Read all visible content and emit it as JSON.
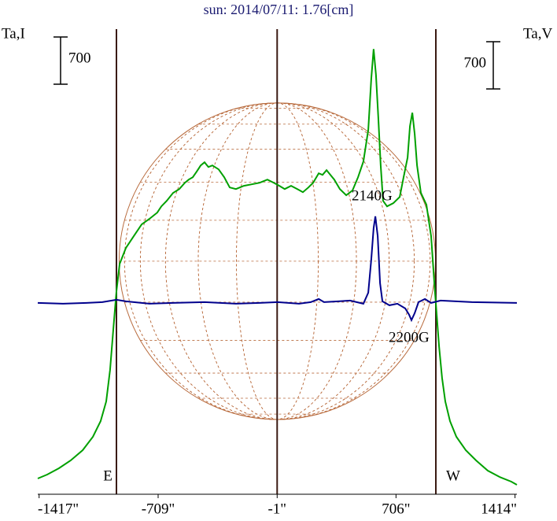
{
  "chart_data": {
    "type": "line",
    "title": "sun: 2014/07/11: 1.76[cm]",
    "y_label": "Ta,I",
    "y2_label": "Ta,V",
    "xlim": [
      -1425,
      1425
    ],
    "xticks": [
      {
        "value": -1417,
        "label": "-1417\""
      },
      {
        "value": -709,
        "label": "-709\""
      },
      {
        "value": -1,
        "label": "-1\""
      },
      {
        "value": 706,
        "label": "706\""
      },
      {
        "value": 1414,
        "label": "1414\""
      }
    ],
    "ylim": [
      0,
      6900
    ],
    "y2lim": [
      -2850,
      4050
    ],
    "y_scale_bar": 700,
    "y2_scale_bar": 700,
    "disk_radius": 941,
    "limb_lines": [
      -957,
      -1,
      943
    ],
    "limb_labels": [
      "E",
      "W"
    ],
    "annotations": [
      "2140G",
      "2200G"
    ],
    "series": [
      {
        "name": "I",
        "color": "#00a000",
        "x": [
          -1425,
          -1369,
          -1299,
          -1229,
          -1158,
          -1097,
          -1051,
          -1018,
          -995,
          -976,
          -957,
          -938,
          -901,
          -854,
          -807,
          -761,
          -714,
          -690,
          -658,
          -620,
          -583,
          -550,
          -527,
          -503,
          -480,
          -456,
          -433,
          -410,
          -386,
          -349,
          -316,
          -283,
          -246,
          -199,
          -152,
          -105,
          -59,
          -21,
          12,
          44,
          82,
          119,
          152,
          185,
          213,
          246,
          269,
          293,
          316,
          339,
          372,
          410,
          447,
          480,
          512,
          541,
          559,
          573,
          587,
          601,
          615,
          629,
          653,
          690,
          728,
          751,
          775,
          789,
          803,
          817,
          831,
          854,
          887,
          915,
          934,
          948,
          962,
          980,
          999,
          1027,
          1065,
          1121,
          1182,
          1252,
          1322,
          1392,
          1425
        ],
        "values": [
          233,
          292,
          385,
          502,
          654,
          852,
          1085,
          1377,
          1844,
          2427,
          3011,
          3419,
          3653,
          3828,
          4003,
          4085,
          4178,
          4271,
          4353,
          4470,
          4528,
          4621,
          4668,
          4703,
          4785,
          4878,
          4925,
          4855,
          4878,
          4820,
          4703,
          4551,
          4528,
          4575,
          4598,
          4621,
          4668,
          4621,
          4575,
          4528,
          4575,
          4528,
          4481,
          4551,
          4621,
          4761,
          4738,
          4808,
          4738,
          4668,
          4528,
          4435,
          4505,
          4703,
          4936,
          5403,
          6162,
          6605,
          6220,
          5578,
          4878,
          4353,
          4271,
          4318,
          4411,
          4703,
          4995,
          5462,
          5660,
          5345,
          4878,
          4470,
          4295,
          3828,
          3128,
          2661,
          2194,
          1727,
          1377,
          1085,
          852,
          654,
          502,
          350,
          257,
          187,
          140
        ]
      },
      {
        "name": "V",
        "color": "#00008c",
        "axis": "y2",
        "x": [
          -1425,
          -1275,
          -1135,
          -1041,
          -957,
          -901,
          -761,
          -620,
          -433,
          -246,
          -105,
          2,
          129,
          199,
          246,
          278,
          363,
          433,
          512,
          541,
          559,
          573,
          583,
          597,
          611,
          625,
          667,
          714,
          761,
          784,
          798,
          817,
          840,
          878,
          915,
          971,
          1158,
          1425
        ],
        "values": [
          -12,
          -23,
          -12,
          0,
          35,
          12,
          -23,
          -12,
          0,
          -23,
          -12,
          0,
          -23,
          0,
          47,
          0,
          12,
          23,
          -23,
          140,
          630,
          1097,
          1272,
          980,
          280,
          12,
          -47,
          -23,
          -93,
          -187,
          -268,
          -163,
          0,
          47,
          -12,
          23,
          0,
          -12
        ]
      }
    ]
  }
}
